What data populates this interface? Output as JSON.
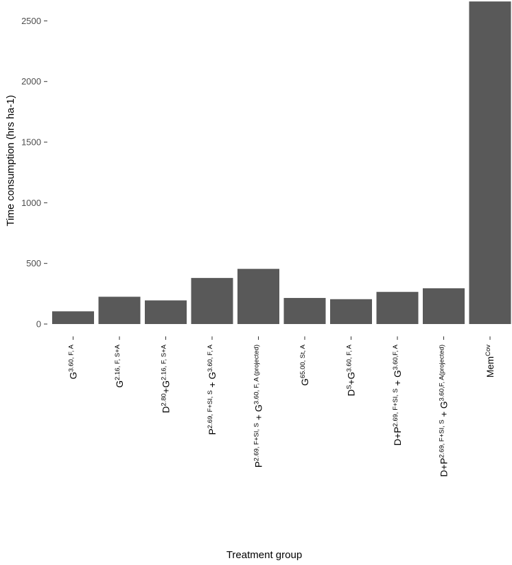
{
  "chart_data": {
    "type": "bar",
    "xlabel": "Treatment group",
    "ylabel": "Time consumption (hrs ha-1)",
    "ylim": [
      0,
      2650
    ],
    "yticks": [
      0,
      500,
      1000,
      1500,
      2000,
      2500
    ],
    "grid": false,
    "bar_color": "#595959",
    "categories": [
      {
        "base": "G",
        "sup": "3.60, F, A"
      },
      {
        "base": "G",
        "sup": "2.16, F, S+A"
      },
      {
        "base": "D",
        "sup": "2.80",
        "base2": "+G",
        "sup2": "2.16, F, S+A"
      },
      {
        "base": "P",
        "sup": "2.69, F+SI, S",
        "base2": " + G",
        "sup2": "3.60, F, A"
      },
      {
        "base": "P",
        "sup": "2.69, F+SI, S",
        "base2": " + G",
        "sup2": "3.60, F, A (projected)"
      },
      {
        "base": "G",
        "sup": "65.00, St, A"
      },
      {
        "base": "D",
        "sup": "S",
        "base2": "+G",
        "sup2": "3.60, F, A"
      },
      {
        "base": "D+P",
        "sup": "2.69, F+SI, S",
        "base2": " + G",
        "sup2": "3.60,F, A"
      },
      {
        "base": "D+P",
        "sup": "2.69, F+SI, S",
        "base2": " + G",
        "sup2": "3.60,F, A(projected)"
      },
      {
        "base": "Mem",
        "sup": "Cov"
      }
    ],
    "values": [
      105,
      225,
      195,
      380,
      455,
      215,
      205,
      265,
      295,
      2660
    ]
  }
}
